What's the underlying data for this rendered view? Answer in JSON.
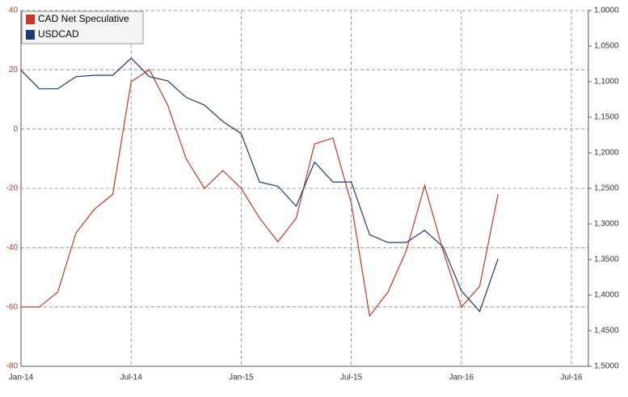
{
  "chart_data": {
    "type": "line",
    "x": [
      "2014-01",
      "2014-02",
      "2014-03",
      "2014-04",
      "2014-05",
      "2014-06",
      "2014-07",
      "2014-08",
      "2014-09",
      "2014-10",
      "2014-11",
      "2014-12",
      "2015-01",
      "2015-02",
      "2015-03",
      "2015-04",
      "2015-05",
      "2015-06",
      "2015-07",
      "2015-08",
      "2015-09",
      "2015-10",
      "2015-11",
      "2015-12",
      "2016-01",
      "2016-02",
      "2016-03"
    ],
    "series": [
      {
        "name": "CAD Net Speculative",
        "color": "#c0392b",
        "values": [
          -60,
          -60,
          -55,
          -35,
          -27,
          -22,
          16,
          20,
          8,
          -10,
          -20,
          -14,
          -20,
          -30,
          -38,
          -30,
          -5,
          -3,
          -25,
          -63,
          -55,
          -41,
          -19,
          -41,
          -60,
          -53,
          -22
        ]
      },
      {
        "name": "USDCAD",
        "color": "#1f3a6e",
        "axis": "y2",
        "values": [
          1.084,
          1.11,
          1.11,
          1.093,
          1.091,
          1.091,
          1.067,
          1.093,
          1.099,
          1.122,
          1.133,
          1.156,
          1.173,
          1.241,
          1.247,
          1.275,
          1.213,
          1.241,
          1.241,
          1.315,
          1.326,
          1.326,
          1.309,
          1.332,
          1.394,
          1.423,
          1.349
        ]
      }
    ],
    "xlim": [
      "2014-01",
      "2016-07"
    ],
    "xticks": [
      {
        "value": "2014-01",
        "label": "Jan-14"
      },
      {
        "value": "2014-07",
        "label": "Jul-14"
      },
      {
        "value": "2015-01",
        "label": "Jan-15"
      },
      {
        "value": "2015-07",
        "label": "Jul-15"
      },
      {
        "value": "2016-01",
        "label": "Jan-16"
      },
      {
        "value": "2016-07",
        "label": "Jul-16"
      }
    ],
    "ylim": [
      -80,
      40
    ],
    "yticks": [
      -80,
      -60,
      -40,
      -20,
      0,
      20,
      40
    ],
    "y2lim": [
      1.5,
      1.0
    ],
    "y2ticks": [
      {
        "value": 1.0,
        "label": "1,0000"
      },
      {
        "value": 1.05,
        "label": "1,0500"
      },
      {
        "value": 1.1,
        "label": "1,1000"
      },
      {
        "value": 1.15,
        "label": "1,1500"
      },
      {
        "value": 1.2,
        "label": "1,2000"
      },
      {
        "value": 1.25,
        "label": "1,2500"
      },
      {
        "value": 1.3,
        "label": "1,3000"
      },
      {
        "value": 1.35,
        "label": "1,3500"
      },
      {
        "value": 1.4,
        "label": "1,4000"
      },
      {
        "value": 1.45,
        "label": "1,4500"
      },
      {
        "value": 1.5,
        "label": "1,5000"
      }
    ],
    "grid": true,
    "legend": "top-left"
  }
}
